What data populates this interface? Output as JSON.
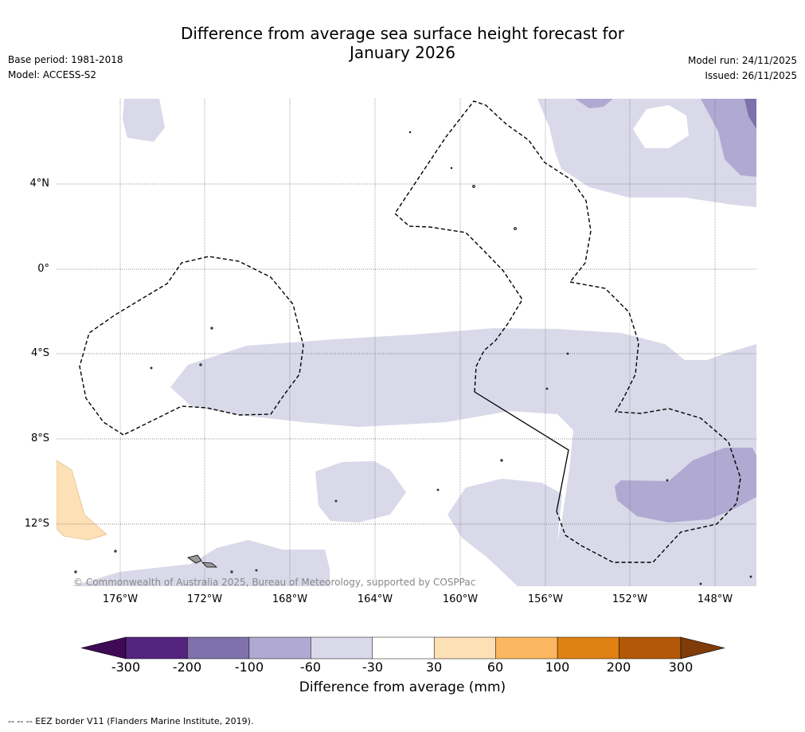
{
  "title_line1": "Difference from average sea surface height forecast for",
  "title_line2": "January 2026",
  "base_period": "Base period: 1981-2018",
  "model": "Model: ACCESS-S2",
  "model_run": "Model run: 24/11/2025",
  "issued": "Issued: 26/11/2025",
  "lat_labels": [
    "4°N",
    "0°",
    "4°S",
    "8°S",
    "12°S"
  ],
  "lon_labels": [
    "176°W",
    "172°W",
    "168°W",
    "164°W",
    "160°W",
    "156°W",
    "152°W",
    "148°W"
  ],
  "credit": "© Commonwealth of Australia 2025, Bureau of Meteorology, supported by COSPPac",
  "colorbar": {
    "title": "Difference from average (mm)",
    "ticks": [
      "-300",
      "-200",
      "-100",
      "-60",
      "-30",
      "30",
      "60",
      "100",
      "200",
      "300"
    ],
    "colors": [
      "#3f0a55",
      "#54247f",
      "#7f71ab",
      "#b0a9d1",
      "#d9d9ea",
      "#ffffff",
      "#fee0b6",
      "#fbb761",
      "#e08114",
      "#b35806",
      "#7f3b08"
    ]
  },
  "footnote": "--  --  -- EEZ border V11 (Flanders Marine Institute, 2019)."
}
